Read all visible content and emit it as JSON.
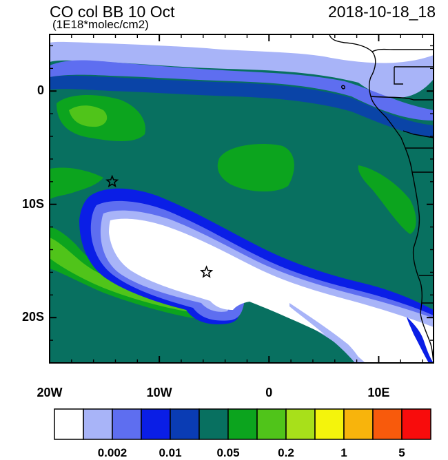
{
  "header": {
    "title": "CO col BB 10 Oct",
    "subtitle": "(1E18*molec/cm2)",
    "datetime": "2018-10-18_18"
  },
  "map": {
    "lon_range": [
      -20,
      15
    ],
    "lat_range": [
      -24,
      5
    ],
    "x_ticks": [
      {
        "label": "20W",
        "lon": -20
      },
      {
        "label": "10W",
        "lon": -10
      },
      {
        "label": "0",
        "lon": 0
      },
      {
        "label": "10E",
        "lon": 10
      }
    ],
    "y_ticks": [
      {
        "label": "0",
        "lat": 0
      },
      {
        "label": "10S",
        "lat": -10
      },
      {
        "label": "20S",
        "lat": -20
      }
    ],
    "markers": [
      {
        "symbol": "star",
        "lon": -14.3,
        "lat": -8.0
      },
      {
        "symbol": "star",
        "lon": -5.7,
        "lat": -16.0
      }
    ]
  },
  "colorbar": {
    "colors": [
      "#ffffff",
      "#a8b4f8",
      "#5e6ef0",
      "#0a1ee6",
      "#0a3cb4",
      "#087060",
      "#0ca41e",
      "#50c41a",
      "#a8e01a",
      "#f4f40c",
      "#f8b40c",
      "#f85a0c",
      "#f80c0c"
    ],
    "labels": [
      {
        "text": "0.002",
        "boundary": 2
      },
      {
        "text": "0.01",
        "boundary": 4
      },
      {
        "text": "0.05",
        "boundary": 6
      },
      {
        "text": "0.2",
        "boundary": 8
      },
      {
        "text": "1",
        "boundary": 10
      },
      {
        "text": "5",
        "boundary": 12
      }
    ]
  }
}
